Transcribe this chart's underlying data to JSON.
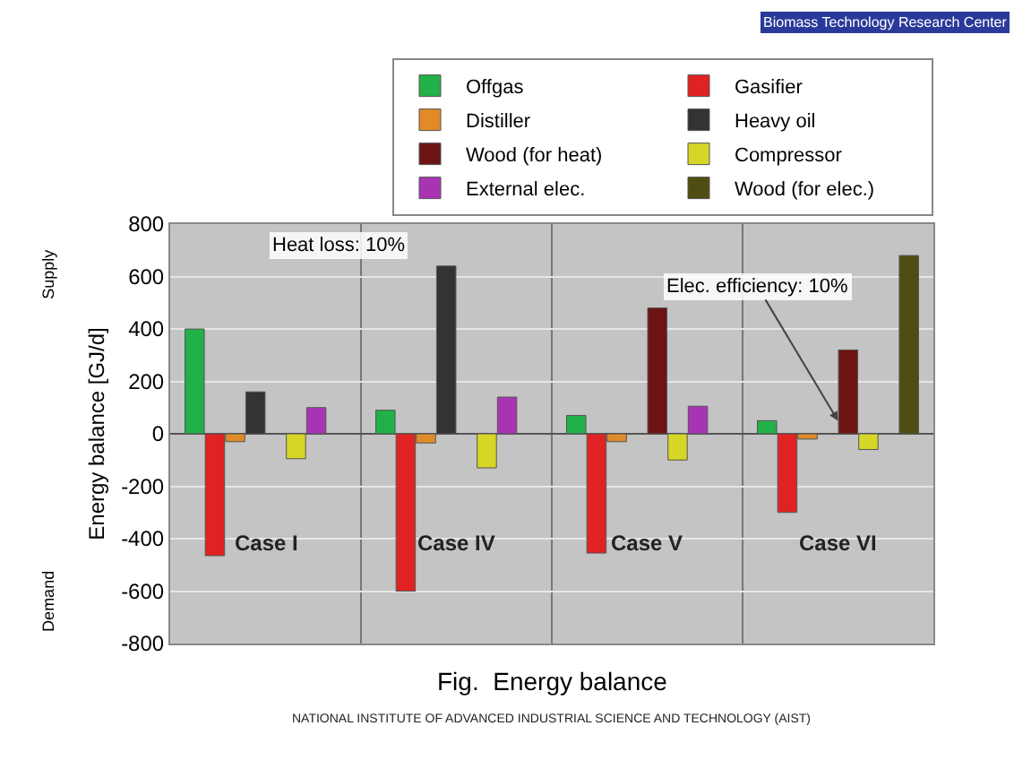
{
  "chart_data": {
    "type": "bar",
    "ylabel": "Energy balance [GJ/d]",
    "categories": [
      "Case I",
      "Case IV",
      "Case V",
      "Case VI"
    ],
    "series": [
      {
        "name": "Offgas",
        "color": "#22b048",
        "values": [
          400,
          90,
          70,
          50
        ]
      },
      {
        "name": "Gasifier",
        "color": "#e02222",
        "values": [
          -465,
          -600,
          -455,
          -300
        ]
      },
      {
        "name": "Distiller",
        "color": "#e08a28",
        "values": [
          -30,
          -35,
          -30,
          -20
        ]
      },
      {
        "name": "Heavy oil",
        "color": "#333333",
        "values": [
          160,
          640,
          null,
          null
        ]
      },
      {
        "name": "Wood (for heat)",
        "color": "#6e1414",
        "values": [
          null,
          null,
          480,
          320
        ]
      },
      {
        "name": "Compressor",
        "color": "#d6d626",
        "values": [
          -95,
          -130,
          -100,
          -60
        ]
      },
      {
        "name": "External elec.",
        "color": "#a834b4",
        "values": [
          100,
          140,
          105,
          null
        ]
      },
      {
        "name": "Wood (for elec.)",
        "color": "#4e4e12",
        "values": [
          null,
          null,
          null,
          680
        ]
      }
    ],
    "ylim": [
      -800,
      800
    ],
    "yticks": [
      -800,
      -600,
      -400,
      -200,
      0,
      200,
      400,
      600,
      800
    ],
    "grid": "y",
    "legend": "top right",
    "tick_labels": "y",
    "annotations": [
      "Heat loss: 10%",
      {
        "text": "Elec. efficiency: 10%",
        "x": "Case VI",
        "y": 50
      },
      "Supply",
      "Demand",
      "Fig.  Energy balance",
      "Biomass Technology Research Center",
      "NATIONAL INSTITUTE OF ADVANCED INDUSTRIAL SCIENCE AND TECHNOLOGY (AIST)"
    ]
  }
}
